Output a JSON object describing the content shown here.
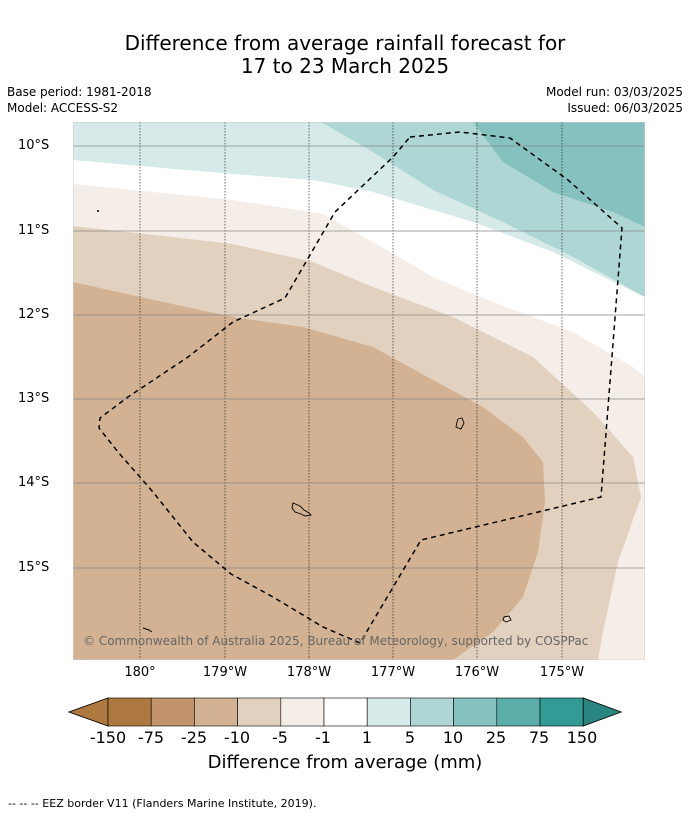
{
  "title_line1": "Difference from average rainfall forecast for",
  "title_line2": "17 to 23 March 2025",
  "base_period": "Base period: 1981-2018",
  "model": "Model: ACCESS-S2",
  "model_run": "Model run: 03/03/2025",
  "issued": "Issued: 06/03/2025",
  "lat_labels": [
    "10°S",
    "11°S",
    "12°S",
    "13°S",
    "14°S",
    "15°S"
  ],
  "lon_labels": [
    "180°",
    "179°W",
    "178°W",
    "177°W",
    "176°W",
    "175°W"
  ],
  "copyright": "© Commonwealth of Australia 2025, Bureau of Meteorology, supported by COSPPac",
  "colorbar": {
    "ticks": [
      "-150",
      "-75",
      "-25",
      "-10",
      "-5",
      "-1",
      "1",
      "5",
      "10",
      "25",
      "75",
      "150"
    ],
    "colors": [
      "#ad7941",
      "#c0936a",
      "#d2b292",
      "#e3d1bf",
      "#f5eee8",
      "#ffffff",
      "#d6ebe9",
      "#aed6d4",
      "#85c2bf",
      "#5caeaa",
      "#349a95",
      "#2a8580"
    ],
    "label": "Difference from average (mm)"
  },
  "footnote": "--  --  -- EEZ border V11 (Flanders Marine Institute, 2019)."
}
